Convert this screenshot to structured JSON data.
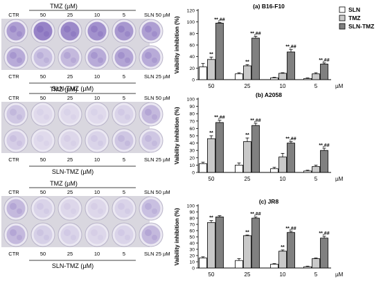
{
  "colors": {
    "SLN": "#ffffff",
    "TMZ": "#c9c9c9",
    "SLN-TMZ": "#808080",
    "stain": "#7b62b8",
    "dish": "#ebe8f2"
  },
  "legend": [
    "SLN",
    "TMZ",
    "SLN-TMZ"
  ],
  "unit": "µM",
  "plate_panels": [
    {
      "top_header": "TMZ (µM)",
      "top_labels": [
        "CTR",
        "50",
        "25",
        "10",
        "5",
        "SLN 50 µM"
      ],
      "bottom_labels": [
        "CTR",
        "50",
        "25",
        "10",
        "5",
        "SLN 25 µM"
      ],
      "bottom_header": "SLN-TMZ (µM)",
      "stain_top": [
        0.55,
        0.75,
        0.7,
        0.65,
        0.6,
        0.55
      ],
      "stain_bottom": [
        0.45,
        0.3,
        0.35,
        0.45,
        0.5,
        0.45
      ]
    },
    {
      "top_header": "TMZ (µM)",
      "top_labels": [
        "CTR",
        "50",
        "25",
        "10",
        "5",
        "SLN 50 µM"
      ],
      "bottom_labels": [
        "CTR",
        "50",
        "25",
        "10",
        "5",
        "SLN 25 µM"
      ],
      "bottom_header": "SLN-TMZ (µM)",
      "stain_top": [
        0.25,
        0.1,
        0.1,
        0.1,
        0.15,
        0.35
      ],
      "stain_bottom": [
        0.2,
        0.1,
        0.12,
        0.15,
        0.25,
        0.25
      ]
    },
    {
      "top_header": "TMZ (µM)",
      "top_labels": [
        "CTR",
        "50",
        "25",
        "10",
        "5",
        "SLN 50 µM"
      ],
      "bottom_labels": [
        "CTR",
        "50",
        "25",
        "10",
        "5",
        "SLN 25 µM"
      ],
      "bottom_header": "SLN-TMZ (µM)",
      "stain_top": [
        0.35,
        0.15,
        0.12,
        0.12,
        0.15,
        0.3
      ],
      "stain_bottom": [
        0.35,
        0.18,
        0.15,
        0.12,
        0.15,
        0.35
      ]
    }
  ],
  "chart_data": [
    {
      "type": "bar",
      "title": "(a) B16-F10",
      "ylabel": "Vaibility inhibition (%)",
      "ylim": [
        0,
        120
      ],
      "yticks": [
        0,
        20,
        40,
        60,
        80,
        100,
        120
      ],
      "categories": [
        "50",
        "25",
        "10",
        "5"
      ],
      "series": [
        {
          "name": "SLN",
          "values": [
            22,
            10,
            3,
            2
          ],
          "errors": [
            6,
            2,
            1,
            1
          ]
        },
        {
          "name": "TMZ",
          "values": [
            35,
            24,
            11,
            10
          ],
          "errors": [
            4,
            2,
            1,
            2
          ]
        },
        {
          "name": "SLN-TMZ",
          "values": [
            98,
            72,
            48,
            27
          ],
          "errors": [
            1,
            3,
            4,
            2
          ]
        }
      ],
      "annotations": {
        "TMZ": [
          "**",
          "**",
          "",
          ""
        ],
        "SLN-TMZ": [
          "**,##",
          "**,##",
          "**,##",
          "**,##"
        ]
      }
    },
    {
      "type": "bar",
      "title": "(b) A2058",
      "ylabel": "Vaibility inhibition (%)",
      "ylim": [
        0,
        100
      ],
      "yticks": [
        0,
        10,
        20,
        30,
        40,
        50,
        60,
        70,
        80,
        90,
        100
      ],
      "categories": [
        "50",
        "25",
        "10",
        "5"
      ],
      "series": [
        {
          "name": "SLN",
          "values": [
            12,
            10,
            5,
            2
          ],
          "errors": [
            2,
            3,
            2,
            1
          ]
        },
        {
          "name": "TMZ",
          "values": [
            46,
            42,
            21,
            8
          ],
          "errors": [
            4,
            5,
            5,
            2
          ]
        },
        {
          "name": "SLN-TMZ",
          "values": [
            68,
            64,
            40,
            30
          ],
          "errors": [
            3,
            3,
            2,
            3
          ]
        }
      ],
      "annotations": {
        "TMZ": [
          "**",
          "**",
          "",
          ""
        ],
        "SLN-TMZ": [
          "**,##",
          "**,##",
          "**,##",
          "**,##"
        ]
      }
    },
    {
      "type": "bar",
      "title": "(c) JR8",
      "ylabel": "Vaibility inhibition (%)",
      "ylim": [
        0,
        100
      ],
      "yticks": [
        0,
        10,
        20,
        30,
        40,
        50,
        60,
        70,
        80,
        90,
        100
      ],
      "categories": [
        "50",
        "25",
        "10",
        "5"
      ],
      "series": [
        {
          "name": "SLN",
          "values": [
            16,
            12,
            6,
            2
          ],
          "errors": [
            2,
            3,
            1,
            1
          ]
        },
        {
          "name": "TMZ",
          "values": [
            73,
            52,
            27,
            15
          ],
          "errors": [
            3,
            1,
            2,
            1
          ]
        },
        {
          "name": "SLN-TMZ",
          "values": [
            82,
            80,
            57,
            48
          ],
          "errors": [
            2,
            2,
            2,
            3
          ]
        }
      ],
      "annotations": {
        "TMZ": [
          "**",
          "**",
          "**",
          ""
        ],
        "SLN-TMZ": [
          "",
          "**,##",
          "**,##",
          "**,##"
        ]
      }
    }
  ]
}
